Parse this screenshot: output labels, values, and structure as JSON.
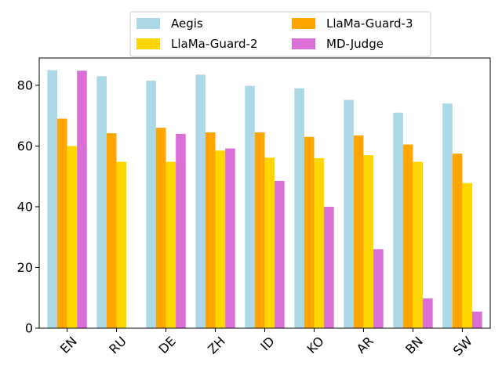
{
  "chart_data": {
    "type": "bar",
    "title": "",
    "xlabel": "",
    "ylabel": "",
    "categories": [
      "EN",
      "RU",
      "DE",
      "ZH",
      "ID",
      "KO",
      "AR",
      "BN",
      "SW"
    ],
    "ylim": [
      0,
      89
    ],
    "yticks": [
      0,
      20,
      40,
      60,
      80
    ],
    "grid": false,
    "legend_position": "top-center",
    "series": [
      {
        "name": "Aegis",
        "color": "#add8e6",
        "values": [
          85.0,
          83.0,
          81.5,
          83.5,
          79.8,
          79.0,
          75.2,
          71.0,
          74.0
        ]
      },
      {
        "name": "LlaMa-Guard-3",
        "color": "#ffa500",
        "values": [
          69.0,
          64.2,
          66.0,
          64.5,
          64.5,
          63.0,
          63.5,
          60.5,
          57.5
        ]
      },
      {
        "name": "LlaMa-Guard-2",
        "color": "#ffd700",
        "values": [
          60.0,
          54.8,
          54.8,
          58.5,
          56.2,
          56.0,
          57.0,
          54.8,
          47.8
        ]
      },
      {
        "name": "MD-Judge",
        "color": "#da70d6",
        "values": [
          84.8,
          0,
          64.0,
          59.2,
          48.5,
          40.0,
          26.0,
          9.8,
          5.5
        ]
      }
    ]
  }
}
